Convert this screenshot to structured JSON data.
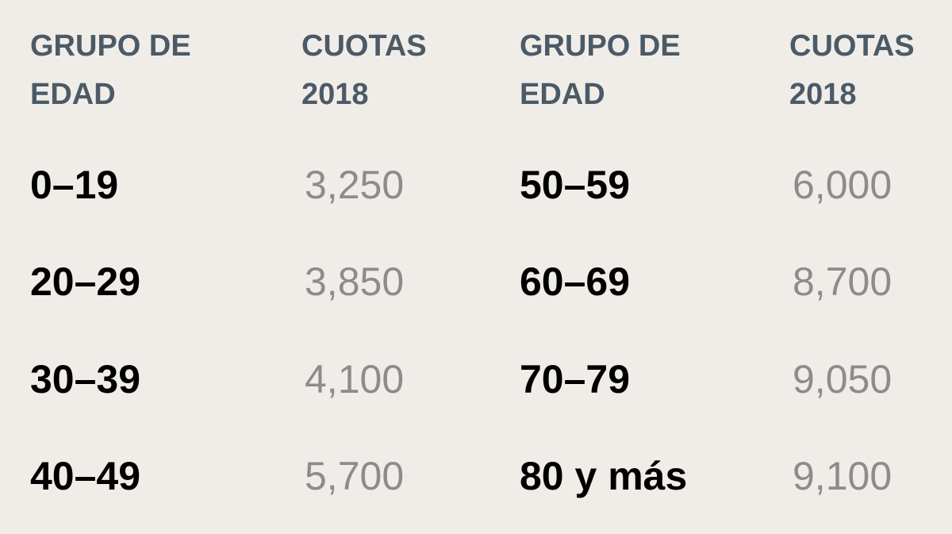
{
  "tables": [
    {
      "headers": [
        "GRUPO DE EDAD",
        "CUOTAS 2018"
      ],
      "rows": [
        [
          "0–19",
          "3,250"
        ],
        [
          "20–29",
          "3,850"
        ],
        [
          "30–39",
          "4,100"
        ],
        [
          "40–49",
          "5,700"
        ]
      ]
    },
    {
      "headers": [
        "GRUPO DE EDAD",
        "CUOTAS 2018"
      ],
      "rows": [
        [
          "50–59",
          "6,000"
        ],
        [
          "60–69",
          "8,700"
        ],
        [
          "70–79",
          "9,050"
        ],
        [
          "80 y más",
          "9,100"
        ]
      ]
    }
  ]
}
